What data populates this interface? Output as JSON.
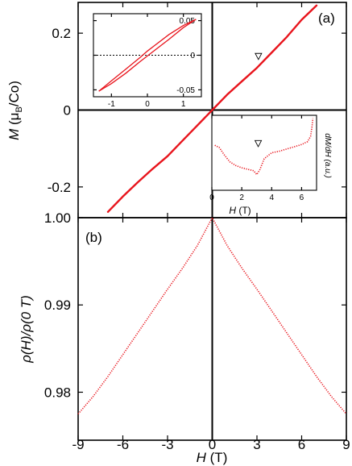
{
  "colors": {
    "data": "#e8141c",
    "axes": "#000000",
    "background": "#ffffff"
  },
  "chart_data": [
    {
      "type": "line",
      "panel_label": "(a)",
      "ylabel": {
        "main": "M",
        "paren_open": " (μ",
        "sub": "B",
        "rest": "/Co)"
      },
      "ylim": [
        -0.28,
        0.28
      ],
      "xlim": [
        -9,
        9
      ],
      "ytick_labels": [
        "0.2",
        "0",
        "-0.2"
      ],
      "ytick_values": [
        0.2,
        0.0,
        -0.2
      ],
      "series": [
        {
          "x": [
            -7.0,
            -6.0,
            -5.0,
            -4.0,
            -3.0,
            -2.0,
            -1.0,
            0.0,
            1.0,
            2.0,
            3.0,
            4.0,
            5.0,
            6.0,
            7.0
          ],
          "y": [
            -0.265,
            -0.225,
            -0.188,
            -0.153,
            -0.12,
            -0.08,
            -0.04,
            0.0,
            0.04,
            0.075,
            0.11,
            0.15,
            0.19,
            0.235,
            0.272
          ]
        }
      ],
      "annotations": [
        {
          "x": 3.1,
          "y": 0.118,
          "marker": "triangle-down"
        }
      ]
    },
    {
      "type": "line",
      "role": "inset-hysteresis",
      "xlim": [
        -1.5,
        1.5
      ],
      "ylim": [
        -0.06,
        0.06
      ],
      "xtick_labels": [
        "-1",
        "0",
        "1"
      ],
      "xtick_values": [
        -1,
        0,
        1
      ],
      "ytick_labels": [
        "0.05",
        "0",
        "-0.05"
      ],
      "ytick_values": [
        0.05,
        0.0,
        -0.05
      ],
      "series": [
        {
          "x": [
            -1.35,
            -1.0,
            -0.6,
            -0.2,
            0.0,
            0.2,
            0.6,
            1.0,
            1.35
          ],
          "y": [
            -0.052,
            -0.041,
            -0.026,
            -0.009,
            -0.001,
            0.007,
            0.023,
            0.04,
            0.052
          ]
        },
        {
          "x": [
            1.35,
            1.0,
            0.6,
            0.2,
            0.0,
            -0.2,
            -0.6,
            -1.0,
            -1.35
          ],
          "y": [
            0.052,
            0.043,
            0.03,
            0.014,
            0.006,
            -0.003,
            -0.02,
            -0.037,
            -0.052
          ]
        }
      ]
    },
    {
      "type": "line",
      "role": "inset-derivative",
      "xlabel": {
        "main": "H",
        "rest": " (T)"
      },
      "ylabel": "dM/dH (a.u.)",
      "xlim": [
        0,
        7
      ],
      "xtick_labels": [
        "0",
        "2",
        "4",
        "6"
      ],
      "xtick_values": [
        0,
        2,
        4,
        6
      ],
      "series": [
        {
          "x": [
            0.2,
            0.5,
            0.8,
            1.2,
            1.6,
            2.0,
            2.4,
            2.8,
            3.0,
            3.2,
            3.5,
            4.0,
            4.5,
            5.0,
            5.5,
            6.0,
            6.4,
            6.6,
            6.7,
            6.75
          ],
          "y": [
            0.6,
            0.57,
            0.48,
            0.38,
            0.33,
            0.3,
            0.28,
            0.26,
            0.21,
            0.27,
            0.42,
            0.5,
            0.52,
            0.55,
            0.58,
            0.61,
            0.65,
            0.72,
            0.85,
            0.96
          ]
        }
      ],
      "annotations": [
        {
          "x": 3.1,
          "marker": "triangle-down"
        }
      ]
    },
    {
      "type": "line",
      "panel_label": "(b)",
      "xlabel": {
        "main": "H",
        "rest": " (T)"
      },
      "ylabel": "ρ(H)/ρ(0 T)",
      "xlim": [
        -9,
        9
      ],
      "ylim": [
        0.9745,
        1.0
      ],
      "xtick_labels": [
        "-9",
        "-6",
        "-3",
        "0",
        "3",
        "6",
        "9"
      ],
      "xtick_values": [
        -9,
        -6,
        -3,
        0,
        3,
        6,
        9
      ],
      "ytick_labels": [
        "1.00",
        "0.99",
        "0.98"
      ],
      "ytick_values": [
        1.0,
        0.99,
        0.98
      ],
      "series": [
        {
          "x": [
            -9,
            -8,
            -7,
            -6,
            -5,
            -4,
            -3,
            -2,
            -1,
            0,
            1,
            2,
            3,
            4,
            5,
            6,
            7,
            8,
            9
          ],
          "y": [
            0.9775,
            0.9795,
            0.9818,
            0.9843,
            0.9868,
            0.9893,
            0.9918,
            0.9942,
            0.9968,
            1.0,
            0.9968,
            0.9942,
            0.9918,
            0.9893,
            0.9868,
            0.9843,
            0.9818,
            0.9795,
            0.9775
          ]
        }
      ]
    }
  ]
}
